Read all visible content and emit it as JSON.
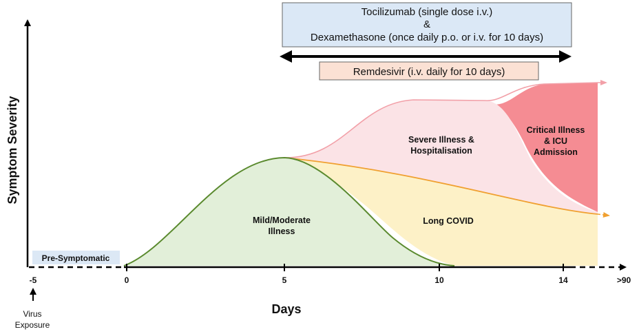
{
  "axes": {
    "y_label": "Symptom Severity",
    "x_label": "Days",
    "ticks": [
      "-5",
      "0",
      "5",
      "10",
      "14",
      ">90"
    ]
  },
  "virus_note": [
    "Virus",
    "Exposure"
  ],
  "phases": {
    "pre_symptomatic": "Pre-Symptomatic",
    "mild_moderate": [
      "Mild/Moderate",
      "Illness"
    ],
    "long_covid": "Long COVID",
    "severe": [
      "Severe Illness &",
      "Hospitalisation"
    ],
    "critical": [
      "Critical Illness",
      "& ICU",
      "Admission"
    ]
  },
  "treatments": {
    "toci_dexa": [
      "Tocilizumab (single dose i.v.)",
      "&",
      "Dexamethasone (once daily p.o. or i.v. for 10 days)"
    ],
    "remdesivir": "Remdesivir (i.v. daily for 10 days)"
  },
  "colors": {
    "mild_fill": "#e2efd9",
    "mild_line": "#5a8a2e",
    "long_fill": "#fdf1c7",
    "long_line": "#f0a030",
    "severe_fill": "#fbe3e6",
    "severe_line": "#f2a0a8",
    "critical_fill": "#f58c93",
    "pre_fill": "#dce8f5",
    "toci_fill": "#dbe8f6",
    "remdesivir_fill": "#fbe1d4"
  }
}
